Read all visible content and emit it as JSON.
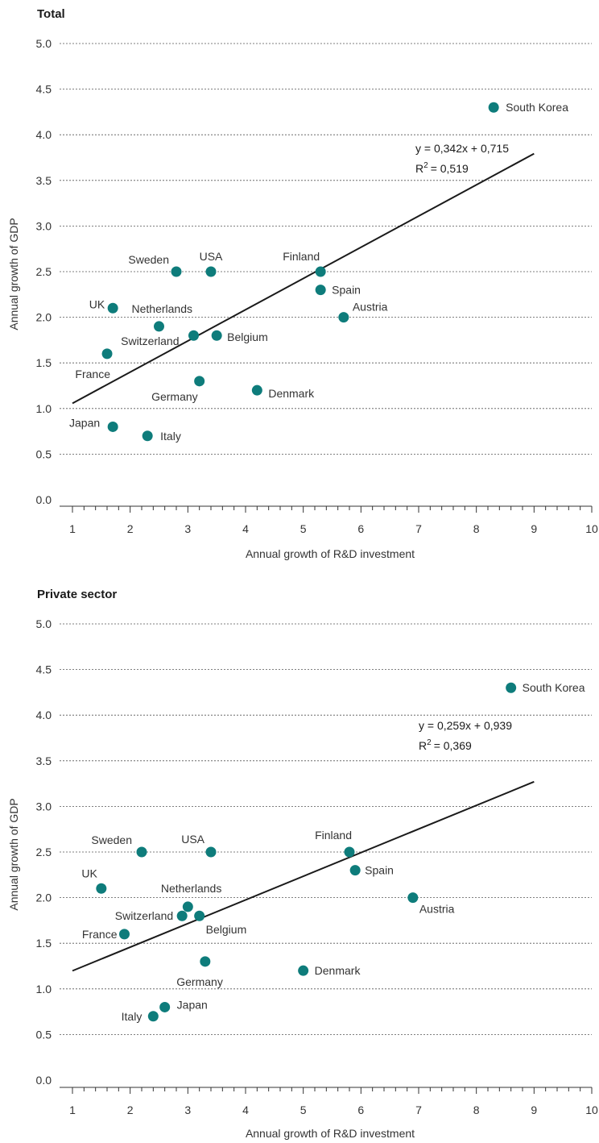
{
  "colors": {
    "point": "#0e7c7b",
    "trend": "#1a1a1a",
    "grid": "#555555"
  },
  "chart_data": [
    {
      "type": "scatter",
      "title": "Total",
      "xlabel": "Annual growth of R&D investment",
      "ylabel": "Annual growth of GDP",
      "xlim": [
        1,
        10
      ],
      "ylim": [
        0,
        5
      ],
      "x_ticks": [
        "1",
        "2",
        "3",
        "4",
        "5",
        "6",
        "7",
        "8",
        "9",
        "10"
      ],
      "y_ticks": [
        "0.0",
        "0.5",
        "1.0",
        "1.5",
        "2.0",
        "2.5",
        "3.0",
        "3.5",
        "4.0",
        "4.5",
        "5.0"
      ],
      "grid": true,
      "regression": {
        "equation": "y = 0,342x + 0,715",
        "r2_prefix": "R",
        "r2_value": "= 0,519",
        "slope": 0.342,
        "intercept": 0.715,
        "x_range": [
          1,
          9
        ]
      },
      "points": [
        {
          "name": "South Korea",
          "x": 8.3,
          "y": 4.3
        },
        {
          "name": "Sweden",
          "x": 2.8,
          "y": 2.5
        },
        {
          "name": "USA",
          "x": 3.4,
          "y": 2.5
        },
        {
          "name": "Finland",
          "x": 5.3,
          "y": 2.5
        },
        {
          "name": "Spain",
          "x": 5.3,
          "y": 2.3
        },
        {
          "name": "UK",
          "x": 1.7,
          "y": 2.1
        },
        {
          "name": "Netherlands",
          "x": 2.5,
          "y": 1.9
        },
        {
          "name": "Austria",
          "x": 5.7,
          "y": 2.0
        },
        {
          "name": "Switzerland",
          "x": 3.1,
          "y": 1.8
        },
        {
          "name": "Belgium",
          "x": 3.5,
          "y": 1.8
        },
        {
          "name": "France",
          "x": 1.6,
          "y": 1.6
        },
        {
          "name": "Germany",
          "x": 3.2,
          "y": 1.3
        },
        {
          "name": "Denmark",
          "x": 4.2,
          "y": 1.2
        },
        {
          "name": "Japan",
          "x": 1.7,
          "y": 0.8
        },
        {
          "name": "Italy",
          "x": 2.3,
          "y": 0.7
        }
      ]
    },
    {
      "type": "scatter",
      "title": "Private sector",
      "xlabel": "Annual growth of R&D investment",
      "ylabel": "Annual growth of GDP",
      "xlim": [
        1,
        10
      ],
      "ylim": [
        0,
        5
      ],
      "x_ticks": [
        "1",
        "2",
        "3",
        "4",
        "5",
        "6",
        "7",
        "8",
        "9",
        "10"
      ],
      "y_ticks": [
        "0.0",
        "0.5",
        "1.0",
        "1.5",
        "2.0",
        "2.5",
        "3.0",
        "3.5",
        "4.0",
        "4.5",
        "5.0"
      ],
      "grid": true,
      "regression": {
        "equation": "y = 0,259x + 0,939",
        "r2_prefix": "R",
        "r2_value": "= 0,369",
        "slope": 0.259,
        "intercept": 0.939,
        "x_range": [
          1,
          9
        ]
      },
      "points": [
        {
          "name": "South Korea",
          "x": 8.6,
          "y": 4.3
        },
        {
          "name": "Sweden",
          "x": 2.2,
          "y": 2.5
        },
        {
          "name": "USA",
          "x": 3.4,
          "y": 2.5
        },
        {
          "name": "Finland",
          "x": 5.8,
          "y": 2.5
        },
        {
          "name": "Spain",
          "x": 5.9,
          "y": 2.3
        },
        {
          "name": "UK",
          "x": 1.5,
          "y": 2.1
        },
        {
          "name": "Netherlands",
          "x": 3.0,
          "y": 1.9
        },
        {
          "name": "Switzerland",
          "x": 2.9,
          "y": 1.8
        },
        {
          "name": "Belgium",
          "x": 3.2,
          "y": 1.8
        },
        {
          "name": "Austria",
          "x": 6.9,
          "y": 2.0
        },
        {
          "name": "France",
          "x": 1.9,
          "y": 1.6
        },
        {
          "name": "Germany",
          "x": 3.3,
          "y": 1.3
        },
        {
          "name": "Denmark",
          "x": 5.0,
          "y": 1.2
        },
        {
          "name": "Japan",
          "x": 2.6,
          "y": 0.8
        },
        {
          "name": "Italy",
          "x": 2.4,
          "y": 0.7
        }
      ]
    }
  ]
}
